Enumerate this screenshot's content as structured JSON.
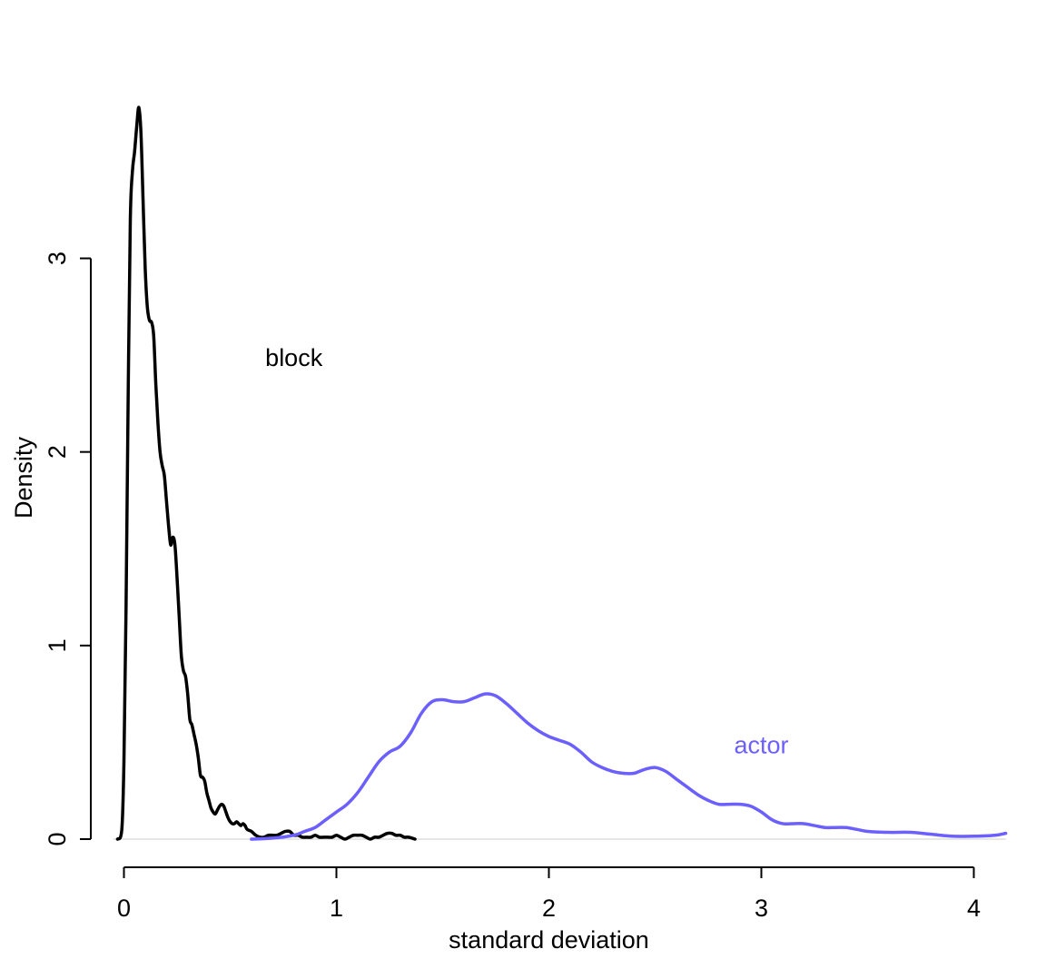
{
  "chart_data": {
    "type": "line",
    "title": "",
    "xlabel": "standard deviation",
    "ylabel": "Density",
    "xlim": [
      -0.05,
      4.15
    ],
    "ylim": [
      0,
      3.8
    ],
    "xticks": [
      0,
      1,
      2,
      3,
      4
    ],
    "xtick_labels": [
      "0",
      "1",
      "2",
      "3",
      "4"
    ],
    "yticks": [
      0,
      1,
      2,
      3
    ],
    "ytick_labels": [
      "0",
      "1",
      "2",
      "3"
    ],
    "grid": false,
    "legend": "none",
    "baseline": 0,
    "series": [
      {
        "name": "block",
        "color": "#000000",
        "label_at": [
          0.8,
          2.49
        ],
        "x": [
          -0.03,
          -0.01,
          0.0,
          0.01,
          0.02,
          0.03,
          0.04,
          0.05,
          0.06,
          0.07,
          0.08,
          0.09,
          0.1,
          0.11,
          0.12,
          0.13,
          0.14,
          0.15,
          0.16,
          0.17,
          0.18,
          0.19,
          0.2,
          0.21,
          0.22,
          0.23,
          0.24,
          0.25,
          0.26,
          0.27,
          0.28,
          0.29,
          0.3,
          0.31,
          0.32,
          0.33,
          0.34,
          0.35,
          0.36,
          0.37,
          0.38,
          0.39,
          0.4,
          0.41,
          0.42,
          0.43,
          0.44,
          0.45,
          0.46,
          0.47,
          0.48,
          0.49,
          0.5,
          0.51,
          0.52,
          0.53,
          0.54,
          0.55,
          0.56,
          0.57,
          0.58,
          0.6,
          0.62,
          0.64,
          0.66,
          0.68,
          0.7,
          0.72,
          0.74,
          0.76,
          0.78,
          0.8,
          0.82,
          0.84,
          0.86,
          0.88,
          0.9,
          0.92,
          0.94,
          0.96,
          0.98,
          1.0,
          1.02,
          1.04,
          1.06,
          1.08,
          1.1,
          1.12,
          1.14,
          1.16,
          1.18,
          1.2,
          1.22,
          1.24,
          1.26,
          1.28,
          1.3,
          1.32,
          1.34,
          1.37
        ],
        "y": [
          0.0,
          0.05,
          0.4,
          1.2,
          2.3,
          3.2,
          3.45,
          3.55,
          3.68,
          3.78,
          3.65,
          3.3,
          2.95,
          2.75,
          2.68,
          2.67,
          2.6,
          2.35,
          2.15,
          2.0,
          1.93,
          1.88,
          1.75,
          1.62,
          1.52,
          1.56,
          1.52,
          1.35,
          1.15,
          0.95,
          0.87,
          0.84,
          0.75,
          0.62,
          0.59,
          0.54,
          0.49,
          0.42,
          0.33,
          0.32,
          0.3,
          0.24,
          0.2,
          0.16,
          0.14,
          0.13,
          0.15,
          0.17,
          0.18,
          0.17,
          0.14,
          0.11,
          0.09,
          0.08,
          0.08,
          0.09,
          0.08,
          0.07,
          0.08,
          0.07,
          0.05,
          0.04,
          0.02,
          0.01,
          0.01,
          0.02,
          0.02,
          0.02,
          0.03,
          0.04,
          0.04,
          0.02,
          0.02,
          0.01,
          0.01,
          0.01,
          0.02,
          0.01,
          0.01,
          0.01,
          0.01,
          0.02,
          0.01,
          0.0,
          0.01,
          0.02,
          0.02,
          0.02,
          0.01,
          0.0,
          0.01,
          0.01,
          0.02,
          0.03,
          0.03,
          0.02,
          0.02,
          0.01,
          0.01,
          0.0
        ]
      },
      {
        "name": "actor",
        "color": "#6B5FFF",
        "label_at": [
          3.0,
          0.49
        ],
        "x": [
          0.6,
          0.7,
          0.8,
          0.85,
          0.9,
          0.95,
          1.0,
          1.05,
          1.1,
          1.15,
          1.2,
          1.25,
          1.3,
          1.35,
          1.4,
          1.45,
          1.5,
          1.55,
          1.6,
          1.65,
          1.7,
          1.75,
          1.8,
          1.85,
          1.9,
          1.95,
          2.0,
          2.05,
          2.1,
          2.15,
          2.2,
          2.25,
          2.3,
          2.35,
          2.4,
          2.45,
          2.5,
          2.55,
          2.6,
          2.65,
          2.7,
          2.75,
          2.8,
          2.85,
          2.9,
          2.95,
          3.0,
          3.05,
          3.1,
          3.15,
          3.2,
          3.25,
          3.3,
          3.35,
          3.4,
          3.45,
          3.5,
          3.6,
          3.7,
          3.8,
          3.9,
          4.0,
          4.1,
          4.15
        ],
        "y": [
          0.0,
          0.005,
          0.02,
          0.04,
          0.06,
          0.1,
          0.14,
          0.18,
          0.24,
          0.32,
          0.4,
          0.45,
          0.48,
          0.55,
          0.65,
          0.71,
          0.72,
          0.71,
          0.71,
          0.73,
          0.75,
          0.74,
          0.7,
          0.65,
          0.6,
          0.56,
          0.53,
          0.51,
          0.49,
          0.45,
          0.4,
          0.37,
          0.35,
          0.34,
          0.34,
          0.36,
          0.37,
          0.35,
          0.31,
          0.27,
          0.23,
          0.2,
          0.18,
          0.18,
          0.18,
          0.17,
          0.14,
          0.1,
          0.08,
          0.08,
          0.08,
          0.07,
          0.06,
          0.06,
          0.06,
          0.05,
          0.04,
          0.035,
          0.035,
          0.025,
          0.015,
          0.015,
          0.02,
          0.03
        ]
      }
    ]
  }
}
